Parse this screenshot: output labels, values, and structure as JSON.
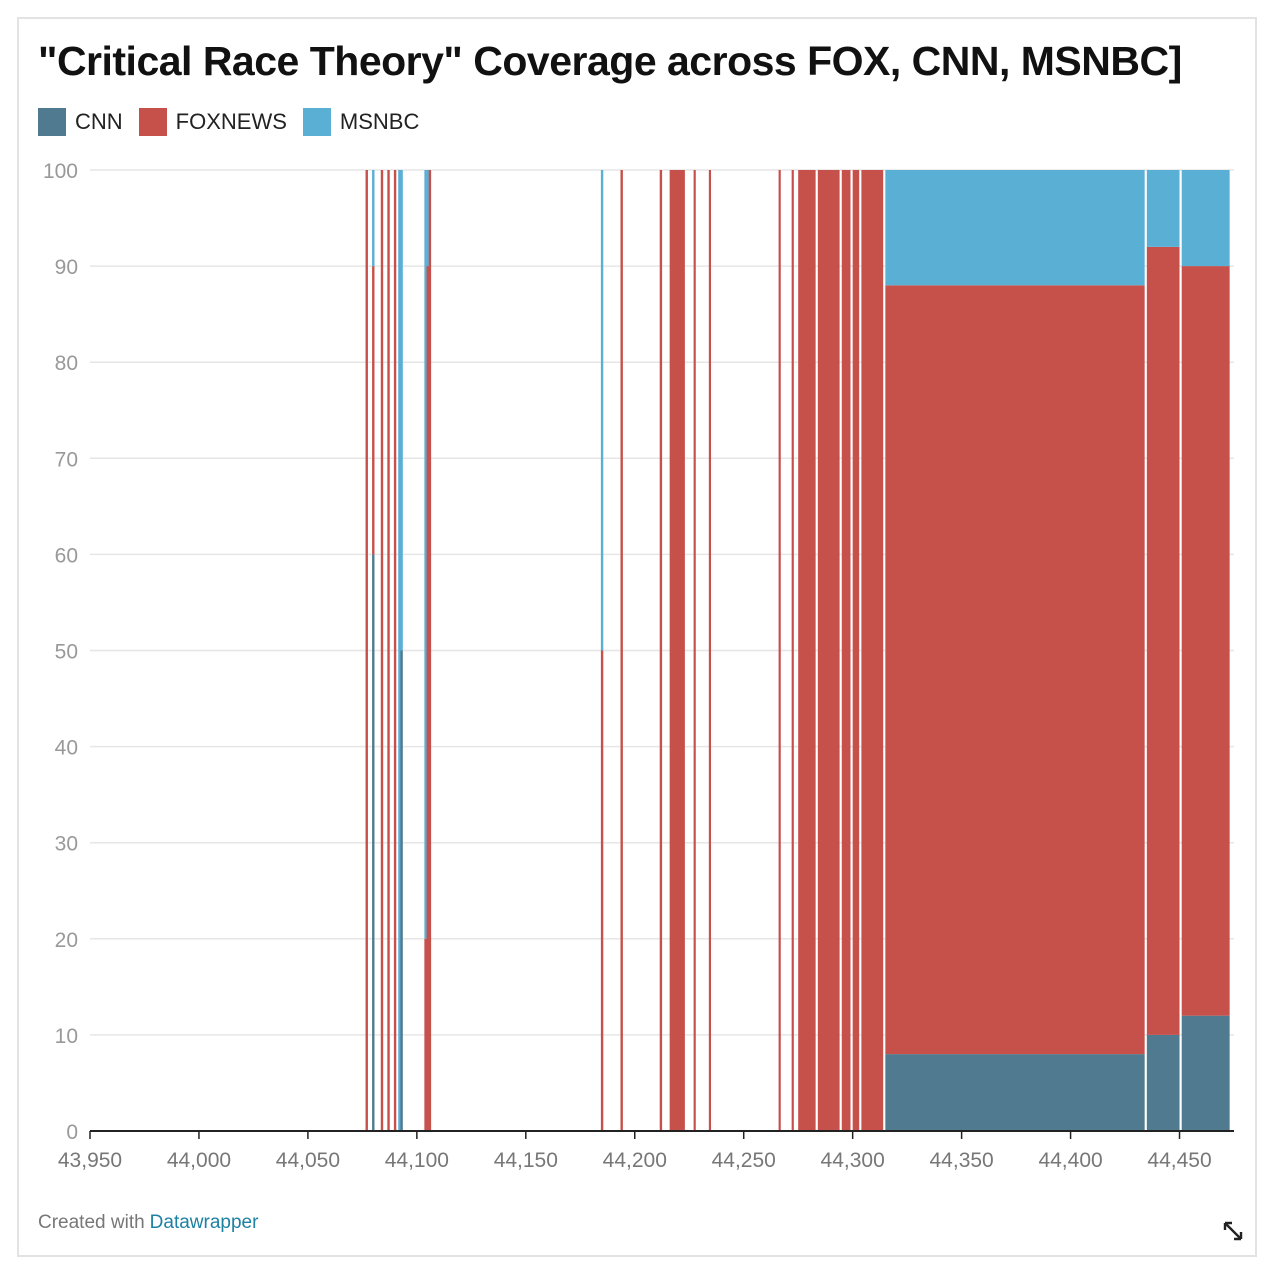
{
  "title": "\"Critical Race Theory\" Coverage across FOX, CNN, MSNBC]",
  "footer": {
    "prefix": "Created with",
    "link": "Datawrapper"
  },
  "colors": {
    "CNN": "#4f7a8f",
    "FOXNEWS": "#c6504a",
    "MSNBC": "#5aafd5",
    "grid": "#e6e6e6",
    "axis": "#222222"
  },
  "icons": {
    "resize": "resize-arrows-icon"
  },
  "chart_data": {
    "type": "area",
    "stacked": true,
    "grid": true,
    "legend_position": "top-left",
    "xlim": [
      43950,
      44475
    ],
    "ylim": [
      0,
      100
    ],
    "x_ticks": [
      43950,
      44000,
      44050,
      44100,
      44150,
      44200,
      44250,
      44300,
      44350,
      44400,
      44450
    ],
    "x_tick_labels": [
      "43,950",
      "44,000",
      "44,050",
      "44,100",
      "44,150",
      "44,200",
      "44,250",
      "44,300",
      "44,350",
      "44,400",
      "44,450"
    ],
    "y_ticks": [
      0,
      10,
      20,
      30,
      40,
      50,
      60,
      70,
      80,
      90,
      100
    ],
    "y_tick_labels": [
      "0",
      "10",
      "20",
      "30",
      "40",
      "50",
      "60",
      "70",
      "80",
      "90",
      "100"
    ],
    "series_order": [
      "CNN",
      "FOXNEWS",
      "MSNBC"
    ],
    "spikes": [
      {
        "x": 44077,
        "CNN": 0,
        "FOXNEWS": 100,
        "MSNBC": 0
      },
      {
        "x": 44080,
        "CNN": 60,
        "FOXNEWS": 30,
        "MSNBC": 10
      },
      {
        "x": 44084,
        "CNN": 0,
        "FOXNEWS": 100,
        "MSNBC": 0
      },
      {
        "x": 44087,
        "CNN": 0,
        "FOXNEWS": 100,
        "MSNBC": 0
      },
      {
        "x": 44090,
        "CNN": 0,
        "FOXNEWS": 100,
        "MSNBC": 0
      },
      {
        "x": 44092,
        "CNN": 0,
        "FOXNEWS": 0,
        "MSNBC": 100
      },
      {
        "x": 44093,
        "CNN": 50,
        "FOXNEWS": 0,
        "MSNBC": 50
      },
      {
        "x": 44104,
        "CNN": 0,
        "FOXNEWS": 20,
        "MSNBC": 80
      },
      {
        "x": 44105,
        "CNN": 0,
        "FOXNEWS": 90,
        "MSNBC": 10
      },
      {
        "x": 44106,
        "CNN": 0,
        "FOXNEWS": 100,
        "MSNBC": 0
      },
      {
        "x": 44185,
        "CNN": 0,
        "FOXNEWS": 50,
        "MSNBC": 50
      },
      {
        "x": 44194,
        "CNN": 0,
        "FOXNEWS": 100,
        "MSNBC": 0
      },
      {
        "x": 44212,
        "CNN": 0,
        "FOXNEWS": 100,
        "MSNBC": 0
      }
    ],
    "bands": [
      {
        "from": 44216,
        "to": 44223,
        "CNN": 0,
        "FOXNEWS": 100,
        "MSNBC": 0
      },
      {
        "from": 44227,
        "to": 44228,
        "CNN": 0,
        "FOXNEWS": 100,
        "MSNBC": 0
      },
      {
        "from": 44234,
        "to": 44235,
        "CNN": 0,
        "FOXNEWS": 100,
        "MSNBC": 0
      },
      {
        "from": 44266,
        "to": 44267,
        "CNN": 0,
        "FOXNEWS": 100,
        "MSNBC": 0
      },
      {
        "from": 44272,
        "to": 44273,
        "CNN": 0,
        "FOXNEWS": 100,
        "MSNBC": 0
      },
      {
        "from": 44275,
        "to": 44283,
        "CNN": 0,
        "FOXNEWS": 100,
        "MSNBC": 0
      },
      {
        "from": 44284,
        "to": 44294,
        "CNN": 0,
        "FOXNEWS": 100,
        "MSNBC": 0
      },
      {
        "from": 44295,
        "to": 44299,
        "CNN": 0,
        "FOXNEWS": 100,
        "MSNBC": 0
      },
      {
        "from": 44300,
        "to": 44303,
        "CNN": 0,
        "FOXNEWS": 100,
        "MSNBC": 0
      },
      {
        "from": 44304,
        "to": 44314,
        "CNN": 0,
        "FOXNEWS": 100,
        "MSNBC": 0
      },
      {
        "from": 44315,
        "to": 44434,
        "CNN": 8,
        "FOXNEWS": 80,
        "MSNBC": 12
      },
      {
        "from": 44435,
        "to": 44450,
        "CNN": 10,
        "FOXNEWS": 82,
        "MSNBC": 8
      },
      {
        "from": 44451,
        "to": 44473,
        "CNN": 12,
        "FOXNEWS": 78,
        "MSNBC": 10
      }
    ]
  }
}
